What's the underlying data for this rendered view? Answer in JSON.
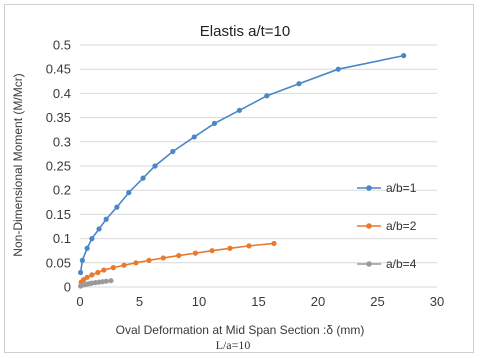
{
  "chart_data": {
    "type": "line",
    "title": "Elastis a/t=10",
    "xlabel": "Oval Deformation at Mid Span Section :δ (mm)",
    "ylabel": "Non-Dimensional  Moment  (M/Mcr)",
    "annotation": "L/a=10",
    "xlim": [
      0,
      30
    ],
    "ylim": [
      0,
      0.5
    ],
    "x_ticks": [
      "0",
      "5",
      "10",
      "15",
      "20",
      "25",
      "30"
    ],
    "y_ticks": [
      "0",
      "0.05",
      "0.1",
      "0.15",
      "0.2",
      "0.25",
      "0.3",
      "0.35",
      "0.4",
      "0.45",
      "0.5"
    ],
    "grid": true,
    "legend_position": "right",
    "series": [
      {
        "name": "a/b=1",
        "color": "#4a86c8",
        "marker": "circle",
        "x": [
          0.05,
          0.2,
          0.6,
          1.0,
          1.6,
          2.2,
          3.1,
          4.1,
          5.3,
          6.3,
          7.8,
          9.6,
          11.3,
          13.4,
          15.7,
          18.4,
          21.7,
          27.2
        ],
        "y": [
          0.03,
          0.055,
          0.08,
          0.1,
          0.12,
          0.14,
          0.165,
          0.195,
          0.225,
          0.25,
          0.28,
          0.31,
          0.338,
          0.365,
          0.395,
          0.42,
          0.45,
          0.478
        ]
      },
      {
        "name": "a/b=2",
        "color": "#e8792f",
        "marker": "circle",
        "x": [
          0.1,
          0.3,
          0.6,
          1.0,
          1.5,
          2.0,
          2.8,
          3.7,
          4.7,
          5.8,
          7.0,
          8.3,
          9.7,
          11.1,
          12.6,
          14.2,
          16.3
        ],
        "y": [
          0.01,
          0.015,
          0.02,
          0.025,
          0.03,
          0.035,
          0.04,
          0.045,
          0.05,
          0.055,
          0.06,
          0.065,
          0.07,
          0.075,
          0.08,
          0.085,
          0.09
        ]
      },
      {
        "name": "a/b=4",
        "color": "#9a9a9a",
        "marker": "circle",
        "x": [
          0.05,
          0.2,
          0.4,
          0.6,
          0.8,
          1.0,
          1.3,
          1.6,
          1.9,
          2.2,
          2.6
        ],
        "y": [
          0.002,
          0.004,
          0.005,
          0.006,
          0.007,
          0.008,
          0.009,
          0.01,
          0.011,
          0.012,
          0.013
        ]
      }
    ]
  }
}
